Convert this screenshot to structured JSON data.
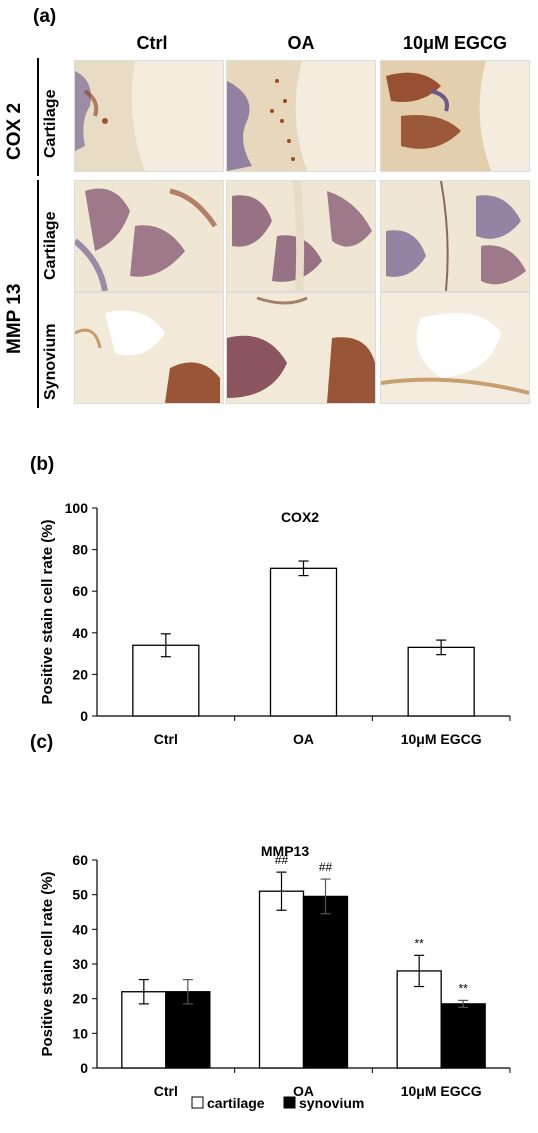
{
  "panel_a": {
    "label": "(a)",
    "columns": [
      "Ctrl",
      "OA",
      "10μM EGCG"
    ],
    "groups": [
      "COX 2",
      "MMP 13"
    ],
    "rows": [
      "Cartilage",
      "Cartilage",
      "Synovium"
    ]
  },
  "panel_b": {
    "label": "(b)"
  },
  "panel_c": {
    "label": "(c)"
  },
  "colors": {
    "tissue_bg": "#efe6d6",
    "stain_dark": "#8a3b1c",
    "stain_purple": "#6b5a8e",
    "white_bar": "#ffffff",
    "black_bar": "#000000"
  },
  "chart_data": [
    {
      "type": "bar",
      "title": "COX2",
      "ylabel": "Positive stain cell rate (%)",
      "xlabel": "",
      "categories": [
        "Ctrl",
        "OA",
        "10μM EGCG"
      ],
      "ylim": [
        0,
        100
      ],
      "yticks": [
        0,
        20,
        40,
        60,
        80,
        100
      ],
      "series": [
        {
          "values": [
            34,
            71,
            33
          ],
          "errors": [
            5.5,
            3.5,
            3.5
          ],
          "color": "#ffffff"
        }
      ]
    },
    {
      "type": "bar",
      "title": "MMP13",
      "ylabel": "Positive stain cell rate (%)",
      "xlabel": "",
      "categories": [
        "Ctrl",
        "OA",
        "10μM EGCG"
      ],
      "ylim": [
        0,
        60
      ],
      "yticks": [
        0,
        10,
        20,
        30,
        40,
        50,
        60
      ],
      "legend_position": "bottom",
      "series": [
        {
          "name": "cartilage",
          "values": [
            22,
            51,
            28
          ],
          "errors": [
            3.5,
            5.5,
            4.5
          ],
          "annotations": [
            "",
            "##",
            "**"
          ],
          "color": "#ffffff"
        },
        {
          "name": "synovium",
          "values": [
            22,
            49.5,
            18.5
          ],
          "errors": [
            3.5,
            5,
            1
          ],
          "annotations": [
            "",
            "##",
            "**"
          ],
          "color": "#000000"
        }
      ]
    }
  ]
}
